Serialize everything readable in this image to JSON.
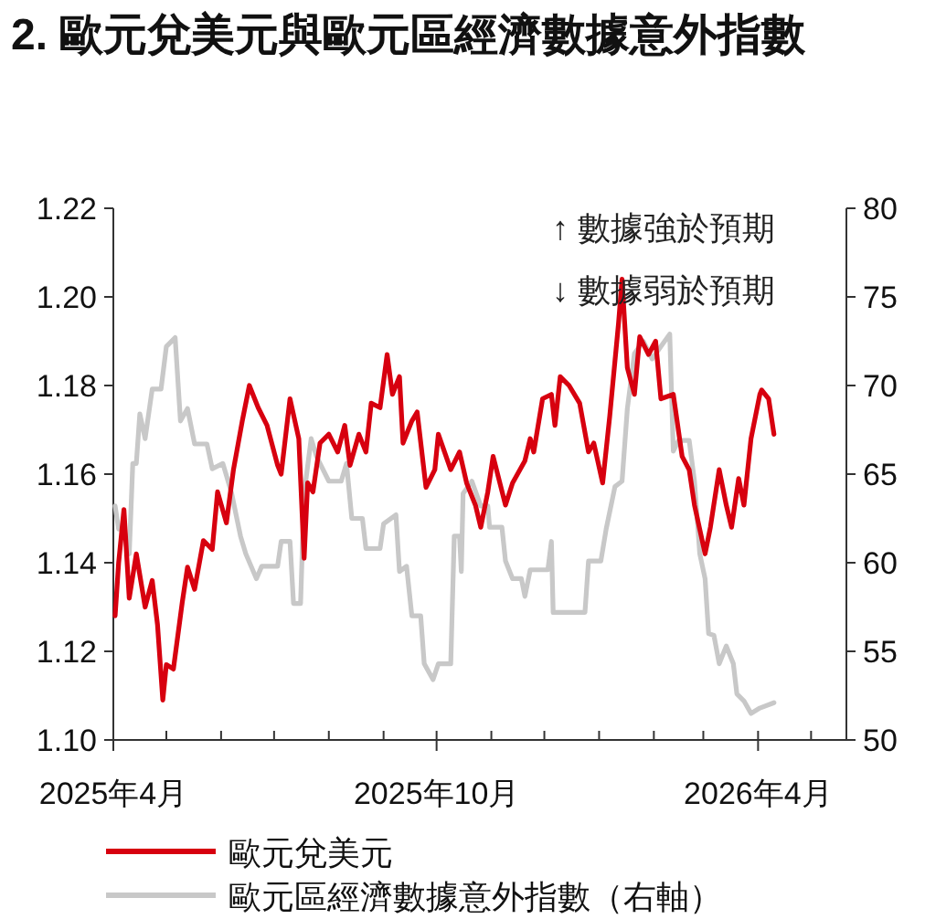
{
  "chart_data": {
    "type": "line",
    "title": "2. 歐元兌美元與歐元區經濟數據意外指數",
    "annotations": [
      "↑ 數據強於預期",
      "↓ 數據弱於預期"
    ],
    "xlim": [
      "2025-04-01",
      "2026-05-21"
    ],
    "xticks": [
      {
        "value": "2025-04",
        "label": "2025年4月"
      },
      {
        "value": "2025-05",
        "label": null
      },
      {
        "value": "2025-06",
        "label": null
      },
      {
        "value": "2025-07",
        "label": null
      },
      {
        "value": "2025-08",
        "label": null
      },
      {
        "value": "2025-09",
        "label": null
      },
      {
        "value": "2025-10",
        "label": "2025年10月"
      },
      {
        "value": "2025-11",
        "label": null
      },
      {
        "value": "2025-12",
        "label": null
      },
      {
        "value": "2026-01",
        "label": null
      },
      {
        "value": "2026-02",
        "label": null
      },
      {
        "value": "2026-03",
        "label": null
      },
      {
        "value": "2026-04",
        "label": "2026年4月"
      },
      {
        "value": "2026-05",
        "label": null
      }
    ],
    "ylim": [
      1.1,
      1.22
    ],
    "yticks": [
      {
        "value": 1.1,
        "label": "1.10"
      },
      1.12,
      1.14,
      1.16,
      1.18,
      {
        "value": 1.2,
        "label": "1.20"
      },
      1.22
    ],
    "y2lim": [
      50,
      80
    ],
    "y2ticks": [
      50,
      55,
      60,
      65,
      70,
      75,
      80
    ],
    "legend": "bottom",
    "series": [
      {
        "name": "歐元兌美元",
        "color": "#d7000f",
        "axis": "y",
        "x": [
          "2025-04-02",
          "2025-04-04",
          "2025-04-07",
          "2025-04-10",
          "2025-04-14",
          "2025-04-19",
          "2025-04-23",
          "2025-04-26",
          "2025-04-29",
          "2025-05-01",
          "2025-05-05",
          "2025-05-10",
          "2025-05-13",
          "2025-05-17",
          "2025-05-22",
          "2025-05-27",
          "2025-05-30",
          "2025-06-04",
          "2025-06-08",
          "2025-06-13",
          "2025-06-17",
          "2025-06-22",
          "2025-06-27",
          "2025-07-03",
          "2025-07-05",
          "2025-07-10",
          "2025-07-15",
          "2025-07-18",
          "2025-07-20",
          "2025-07-23",
          "2025-07-27",
          "2025-08-01",
          "2025-08-06",
          "2025-08-10",
          "2025-08-13",
          "2025-08-18",
          "2025-08-22",
          "2025-08-25",
          "2025-08-30",
          "2025-09-03",
          "2025-09-06",
          "2025-09-10",
          "2025-09-12",
          "2025-09-17",
          "2025-09-20",
          "2025-09-25",
          "2025-09-30",
          "2025-10-02",
          "2025-10-09",
          "2025-10-14",
          "2025-10-18",
          "2025-10-23",
          "2025-10-26",
          "2025-10-30",
          "2025-11-02",
          "2025-11-09",
          "2025-11-13",
          "2025-11-20",
          "2025-11-23",
          "2025-11-25",
          "2025-11-30",
          "2025-12-05",
          "2025-12-07",
          "2025-12-10",
          "2025-12-15",
          "2025-12-21",
          "2025-12-26",
          "2025-12-29",
          "2026-01-03",
          "2026-01-07",
          "2026-01-12",
          "2026-01-14",
          "2026-01-17",
          "2026-01-21",
          "2026-01-24",
          "2026-01-29",
          "2026-02-02",
          "2026-02-05",
          "2026-02-12",
          "2026-02-17",
          "2026-02-21",
          "2026-02-24",
          "2026-03-02",
          "2026-03-05",
          "2026-03-10",
          "2026-03-14",
          "2026-03-17",
          "2026-03-21",
          "2026-03-24",
          "2026-03-28",
          "2026-04-02",
          "2026-04-03",
          "2026-04-07",
          "2026-04-10"
        ],
        "values": [
          1.128,
          1.14,
          1.152,
          1.132,
          1.142,
          1.13,
          1.136,
          1.126,
          1.109,
          1.117,
          1.116,
          1.131,
          1.139,
          1.134,
          1.145,
          1.143,
          1.156,
          1.149,
          1.161,
          1.172,
          1.18,
          1.175,
          1.171,
          1.162,
          1.16,
          1.177,
          1.168,
          1.141,
          1.158,
          1.156,
          1.167,
          1.169,
          1.165,
          1.171,
          1.162,
          1.169,
          1.165,
          1.176,
          1.175,
          1.187,
          1.178,
          1.182,
          1.167,
          1.172,
          1.174,
          1.157,
          1.161,
          1.169,
          1.161,
          1.165,
          1.158,
          1.153,
          1.148,
          1.156,
          1.164,
          1.153,
          1.158,
          1.163,
          1.168,
          1.165,
          1.177,
          1.178,
          1.171,
          1.182,
          1.18,
          1.176,
          1.165,
          1.167,
          1.158,
          1.173,
          1.194,
          1.204,
          1.184,
          1.178,
          1.191,
          1.187,
          1.19,
          1.177,
          1.178,
          1.164,
          1.161,
          1.153,
          1.142,
          1.148,
          1.161,
          1.153,
          1.148,
          1.159,
          1.153,
          1.168,
          1.178,
          1.179,
          1.177,
          1.169
        ]
      },
      {
        "name": "歐元區經濟數據意外指數（右軸）",
        "color": "#c8c8c8",
        "axis": "y2",
        "x": [
          "2025-04-02",
          "2025-04-04",
          "2025-04-07",
          "2025-04-10",
          "2025-04-12",
          "2025-04-14",
          "2025-04-16",
          "2025-04-19",
          "2025-04-23",
          "2025-04-28",
          "2025-05-01",
          "2025-05-06",
          "2025-05-09",
          "2025-05-13",
          "2025-05-17",
          "2025-05-24",
          "2025-05-27",
          "2025-06-02",
          "2025-06-07",
          "2025-06-12",
          "2025-06-15",
          "2025-06-21",
          "2025-06-24",
          "2025-07-03",
          "2025-07-05",
          "2025-07-10",
          "2025-07-12",
          "2025-07-16",
          "2025-07-18",
          "2025-07-22",
          "2025-07-25",
          "2025-08-01",
          "2025-08-08",
          "2025-08-11",
          "2025-08-14",
          "2025-08-20",
          "2025-08-22",
          "2025-08-30",
          "2025-09-01",
          "2025-09-08",
          "2025-09-10",
          "2025-09-14",
          "2025-09-17",
          "2025-09-22",
          "2025-09-24",
          "2025-09-29",
          "2025-10-02",
          "2025-10-09",
          "2025-10-11",
          "2025-10-14",
          "2025-10-15",
          "2025-10-16",
          "2025-10-21",
          "2025-10-26",
          "2025-10-30",
          "2025-10-31",
          "2025-11-07",
          "2025-11-09",
          "2025-11-13",
          "2025-11-18",
          "2025-11-20",
          "2025-11-23",
          "2025-12-03",
          "2025-12-05",
          "2025-12-06",
          "2025-12-24",
          "2025-12-26",
          "2026-01-02",
          "2026-01-05",
          "2026-01-10",
          "2026-01-14",
          "2026-01-17",
          "2026-01-21",
          "2026-01-26",
          "2026-01-31",
          "2026-02-05",
          "2026-02-10",
          "2026-02-12",
          "2026-02-15",
          "2026-02-21",
          "2026-02-24",
          "2026-02-27",
          "2026-03-02",
          "2026-03-04",
          "2026-03-07",
          "2026-03-10",
          "2026-03-14",
          "2026-03-18",
          "2026-03-20",
          "2026-03-24",
          "2026-03-28",
          "2026-04-02",
          "2026-04-10"
        ],
        "values": [
          63.2,
          61.9,
          61.9,
          60.5,
          65.6,
          65.6,
          68.4,
          67.0,
          69.8,
          69.8,
          72.2,
          72.7,
          68.0,
          68.7,
          66.7,
          66.7,
          65.3,
          65.6,
          63.9,
          61.5,
          60.5,
          59.1,
          59.8,
          59.8,
          61.2,
          61.2,
          57.7,
          57.7,
          63.9,
          67.0,
          66.0,
          64.6,
          64.6,
          65.6,
          62.5,
          62.5,
          60.8,
          60.8,
          62.2,
          62.7,
          59.5,
          59.8,
          57.0,
          57.0,
          54.3,
          53.4,
          54.3,
          54.3,
          61.5,
          61.5,
          59.5,
          63.9,
          64.6,
          63.2,
          63.2,
          62.0,
          62.0,
          60.1,
          59.1,
          59.1,
          58.1,
          59.6,
          59.6,
          61.2,
          57.2,
          57.2,
          60.1,
          60.1,
          61.9,
          64.3,
          64.6,
          68.7,
          71.8,
          72.5,
          71.5,
          72.2,
          72.9,
          66.3,
          66.9,
          66.9,
          64.6,
          60.5,
          59.1,
          56.0,
          55.9,
          54.3,
          55.3,
          54.3,
          52.6,
          52.2,
          51.5,
          51.8,
          52.1
        ]
      }
    ]
  }
}
